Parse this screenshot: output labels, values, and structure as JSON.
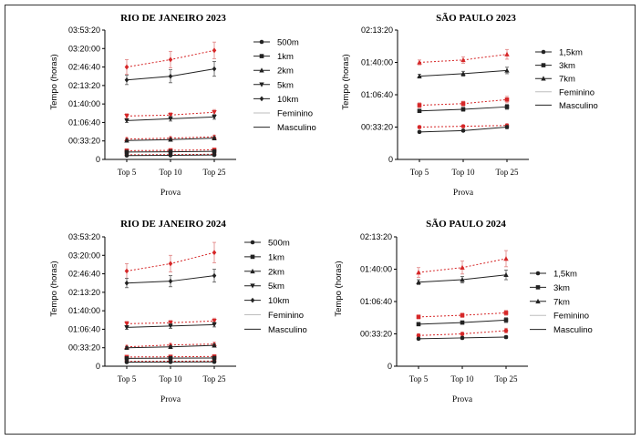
{
  "chart_data": [
    {
      "type": "line",
      "title": "RIO DE JANEIRO 2023",
      "xlabel": "Prova",
      "ylabel": "Tempo (horas)",
      "categories": [
        "Top 5",
        "Top 10",
        "Top 25"
      ],
      "yticks": [
        "0",
        "00:33:20",
        "01:06:40",
        "01:40:00",
        "02:13:20",
        "02:46:40",
        "03:20:00",
        "03:53:20"
      ],
      "ylim_seconds": [
        0,
        14000
      ],
      "legend": [
        {
          "label": "500m",
          "marker": "circle"
        },
        {
          "label": "1km",
          "marker": "square"
        },
        {
          "label": "2km",
          "marker": "triangle-up"
        },
        {
          "label": "5km",
          "marker": "triangle-down"
        },
        {
          "label": "10km",
          "marker": "diamond"
        },
        {
          "label": "Feminino",
          "marker": "none"
        },
        {
          "label": "Masculino",
          "marker": "none"
        }
      ],
      "series": [
        {
          "distance": "500m",
          "sex": "Feminino",
          "values_seconds": [
            500,
            520,
            560
          ],
          "err_seconds": [
            70,
            70,
            80
          ]
        },
        {
          "distance": "500m",
          "sex": "Masculino",
          "values_seconds": [
            420,
            440,
            480
          ],
          "err_seconds": [
            50,
            50,
            60
          ]
        },
        {
          "distance": "1km",
          "sex": "Feminino",
          "values_seconds": [
            950,
            980,
            1040
          ],
          "err_seconds": [
            90,
            90,
            100
          ]
        },
        {
          "distance": "1km",
          "sex": "Masculino",
          "values_seconds": [
            800,
            830,
            870
          ],
          "err_seconds": [
            60,
            60,
            70
          ]
        },
        {
          "distance": "2km",
          "sex": "Feminino",
          "values_seconds": [
            2200,
            2300,
            2450
          ],
          "err_seconds": [
            150,
            150,
            180
          ]
        },
        {
          "distance": "2km",
          "sex": "Masculino",
          "values_seconds": [
            2050,
            2150,
            2300
          ],
          "err_seconds": [
            120,
            130,
            150
          ]
        },
        {
          "distance": "5km",
          "sex": "Feminino",
          "values_seconds": [
            4700,
            4800,
            5100
          ],
          "err_seconds": [
            250,
            250,
            300
          ]
        },
        {
          "distance": "5km",
          "sex": "Masculino",
          "values_seconds": [
            4200,
            4400,
            4600
          ],
          "err_seconds": [
            200,
            250,
            250
          ]
        },
        {
          "distance": "10km",
          "sex": "Feminino",
          "values_seconds": [
            10000,
            10800,
            11800
          ],
          "err_seconds": [
            800,
            900,
            900
          ]
        },
        {
          "distance": "10km",
          "sex": "Masculino",
          "values_seconds": [
            8600,
            9000,
            9800
          ],
          "err_seconds": [
            500,
            700,
            800
          ]
        }
      ]
    },
    {
      "type": "line",
      "title": "SÃO PAULO 2023",
      "xlabel": "Prova",
      "ylabel": "Tempo (horas)",
      "categories": [
        "Top 5",
        "Top 10",
        "Top 25"
      ],
      "yticks": [
        "0",
        "00:33:20",
        "01:06:40",
        "01:40:00",
        "02:13:20"
      ],
      "ylim_seconds": [
        0,
        8000
      ],
      "legend": [
        {
          "label": "1,5km",
          "marker": "circle"
        },
        {
          "label": "3km",
          "marker": "square"
        },
        {
          "label": "7km",
          "marker": "triangle-up"
        },
        {
          "label": "Feminino",
          "marker": "none"
        },
        {
          "label": "Masculino",
          "marker": "none"
        }
      ],
      "series": [
        {
          "distance": "1,5km",
          "sex": "Feminino",
          "values_seconds": [
            2000,
            2050,
            2100
          ],
          "err_seconds": [
            80,
            80,
            100
          ]
        },
        {
          "distance": "1,5km",
          "sex": "Masculino",
          "values_seconds": [
            1700,
            1780,
            2000
          ],
          "err_seconds": [
            60,
            70,
            100
          ]
        },
        {
          "distance": "3km",
          "sex": "Feminino",
          "values_seconds": [
            3350,
            3450,
            3700
          ],
          "err_seconds": [
            150,
            150,
            200
          ]
        },
        {
          "distance": "3km",
          "sex": "Masculino",
          "values_seconds": [
            3000,
            3100,
            3250
          ],
          "err_seconds": [
            100,
            120,
            150
          ]
        },
        {
          "distance": "7km",
          "sex": "Feminino",
          "values_seconds": [
            6000,
            6150,
            6500
          ],
          "err_seconds": [
            150,
            200,
            300
          ]
        },
        {
          "distance": "7km",
          "sex": "Masculino",
          "values_seconds": [
            5150,
            5300,
            5500
          ],
          "err_seconds": [
            120,
            150,
            200
          ]
        }
      ]
    },
    {
      "type": "line",
      "title": "RIO DE JANEIRO 2024",
      "xlabel": "Prova",
      "ylabel": "Tempo (horas)",
      "categories": [
        "Top 5",
        "Top 10",
        "Top 25"
      ],
      "yticks": [
        "0",
        "00:33:20",
        "01:06:40",
        "01:40:00",
        "02:13:20",
        "02:46:40",
        "03:20:00",
        "03:53:20"
      ],
      "ylim_seconds": [
        0,
        14000
      ],
      "legend": [
        {
          "label": "500m",
          "marker": "circle"
        },
        {
          "label": "1km",
          "marker": "square"
        },
        {
          "label": "2km",
          "marker": "triangle-up"
        },
        {
          "label": "5km",
          "marker": "triangle-down"
        },
        {
          "label": "10km",
          "marker": "diamond"
        },
        {
          "label": "Feminino",
          "marker": "none"
        },
        {
          "label": "Masculino",
          "marker": "none"
        }
      ],
      "series": [
        {
          "distance": "500m",
          "sex": "Feminino",
          "values_seconds": [
            520,
            540,
            560
          ],
          "err_seconds": [
            70,
            70,
            80
          ]
        },
        {
          "distance": "500m",
          "sex": "Masculino",
          "values_seconds": [
            440,
            450,
            470
          ],
          "err_seconds": [
            50,
            50,
            60
          ]
        },
        {
          "distance": "1km",
          "sex": "Feminino",
          "values_seconds": [
            1000,
            1020,
            1050
          ],
          "err_seconds": [
            90,
            90,
            100
          ]
        },
        {
          "distance": "1km",
          "sex": "Masculino",
          "values_seconds": [
            850,
            870,
            890
          ],
          "err_seconds": [
            60,
            60,
            70
          ]
        },
        {
          "distance": "2km",
          "sex": "Feminino",
          "values_seconds": [
            2100,
            2300,
            2400
          ],
          "err_seconds": [
            150,
            150,
            180
          ]
        },
        {
          "distance": "2km",
          "sex": "Masculino",
          "values_seconds": [
            2000,
            2100,
            2250
          ],
          "err_seconds": [
            120,
            130,
            150
          ]
        },
        {
          "distance": "5km",
          "sex": "Feminino",
          "values_seconds": [
            4600,
            4700,
            4900
          ],
          "err_seconds": [
            250,
            250,
            300
          ]
        },
        {
          "distance": "5km",
          "sex": "Masculino",
          "values_seconds": [
            4200,
            4350,
            4500
          ],
          "err_seconds": [
            200,
            250,
            250
          ]
        },
        {
          "distance": "10km",
          "sex": "Feminino",
          "values_seconds": [
            10300,
            11100,
            12300
          ],
          "err_seconds": [
            800,
            900,
            1100
          ]
        },
        {
          "distance": "10km",
          "sex": "Masculino",
          "values_seconds": [
            9000,
            9200,
            9800
          ],
          "err_seconds": [
            500,
            600,
            700
          ]
        }
      ]
    },
    {
      "type": "line",
      "title": "SÃO PAULO 2024",
      "xlabel": "Prova",
      "ylabel": "Tempo (horas)",
      "categories": [
        "Top 5",
        "Top 10",
        "Top 25"
      ],
      "yticks": [
        "0",
        "00:33:20",
        "01:06:40",
        "01:40:00",
        "02:13:20"
      ],
      "ylim_seconds": [
        0,
        8000
      ],
      "legend": [
        {
          "label": "1,5km",
          "marker": "circle"
        },
        {
          "label": "3km",
          "marker": "square"
        },
        {
          "label": "7km",
          "marker": "triangle-up"
        },
        {
          "label": "Feminino",
          "marker": "none"
        },
        {
          "label": "Masculino",
          "marker": "none"
        }
      ],
      "series": [
        {
          "distance": "1,5km",
          "sex": "Feminino",
          "values_seconds": [
            1900,
            2000,
            2200
          ],
          "err_seconds": [
            100,
            100,
            150
          ]
        },
        {
          "distance": "1,5km",
          "sex": "Masculino",
          "values_seconds": [
            1700,
            1750,
            1800
          ],
          "err_seconds": [
            60,
            70,
            80
          ]
        },
        {
          "distance": "3km",
          "sex": "Feminino",
          "values_seconds": [
            3050,
            3150,
            3300
          ],
          "err_seconds": [
            120,
            130,
            150
          ]
        },
        {
          "distance": "3km",
          "sex": "Masculino",
          "values_seconds": [
            2600,
            2700,
            2850
          ],
          "err_seconds": [
            100,
            100,
            150
          ]
        },
        {
          "distance": "7km",
          "sex": "Feminino",
          "values_seconds": [
            5800,
            6100,
            6650
          ],
          "err_seconds": [
            300,
            400,
            500
          ]
        },
        {
          "distance": "7km",
          "sex": "Masculino",
          "values_seconds": [
            5200,
            5350,
            5650
          ],
          "err_seconds": [
            150,
            200,
            300
          ]
        }
      ]
    }
  ],
  "colors": {
    "feminino": "#d62728",
    "masculino": "#222222",
    "feminino_legend_line": "#bdbdbd"
  }
}
